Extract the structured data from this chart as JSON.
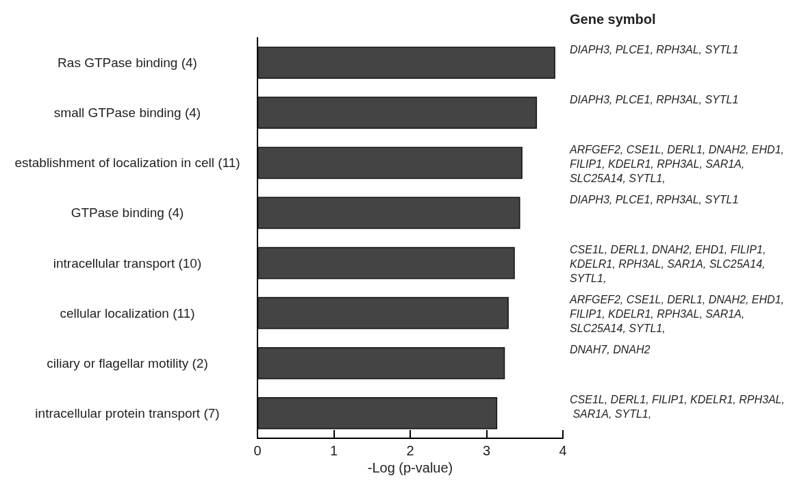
{
  "chart_data": {
    "type": "bar",
    "orientation": "horizontal",
    "xlabel": "-Log (p-value)",
    "categories": [
      "Ras GTPase binding (4)",
      "small GTPase binding (4)",
      "establishment of localization in cell (11)",
      "GTPase binding (4)",
      "intracellular transport (10)",
      "cellular localization (11)",
      "ciliary or flagellar motility (2)",
      "intracellular protein transport (7)"
    ],
    "values": [
      3.9,
      3.66,
      3.47,
      3.44,
      3.37,
      3.29,
      3.24,
      3.14
    ],
    "color": "#444444",
    "xlim": [
      0,
      4
    ],
    "xticks": [
      0,
      1,
      2,
      3,
      4
    ],
    "grid": false,
    "annotations": [
      "Gene symbol",
      "DIAPH3, PLCE1, RPH3AL, SYTL1",
      "DIAPH3, PLCE1, RPH3AL, SYTL1",
      "ARFGEF2, CSE1L, DERL1, DNAH2, EHD1, FILIP1, KDELR1, RPH3AL, SAR1A, SLC25A14, SYTL1,",
      "DIAPH3, PLCE1, RPH3AL, SYTL1",
      "CSE1L, DERL1, DNAH2, EHD1, FILIP1, KDELR1, RPH3AL, SAR1A, SLC25A14, SYTL1,",
      "ARFGEF2, CSE1L, DERL1, DNAH2, EHD1, FILIP1, KDELR1, RPH3AL, SAR1A, SLC25A14, SYTL1,",
      "DNAH7, DNAH2",
      "CSE1L, DERL1, FILIP1, KDELR1, RPH3AL, SAR1A, SYTL1,"
    ]
  }
}
